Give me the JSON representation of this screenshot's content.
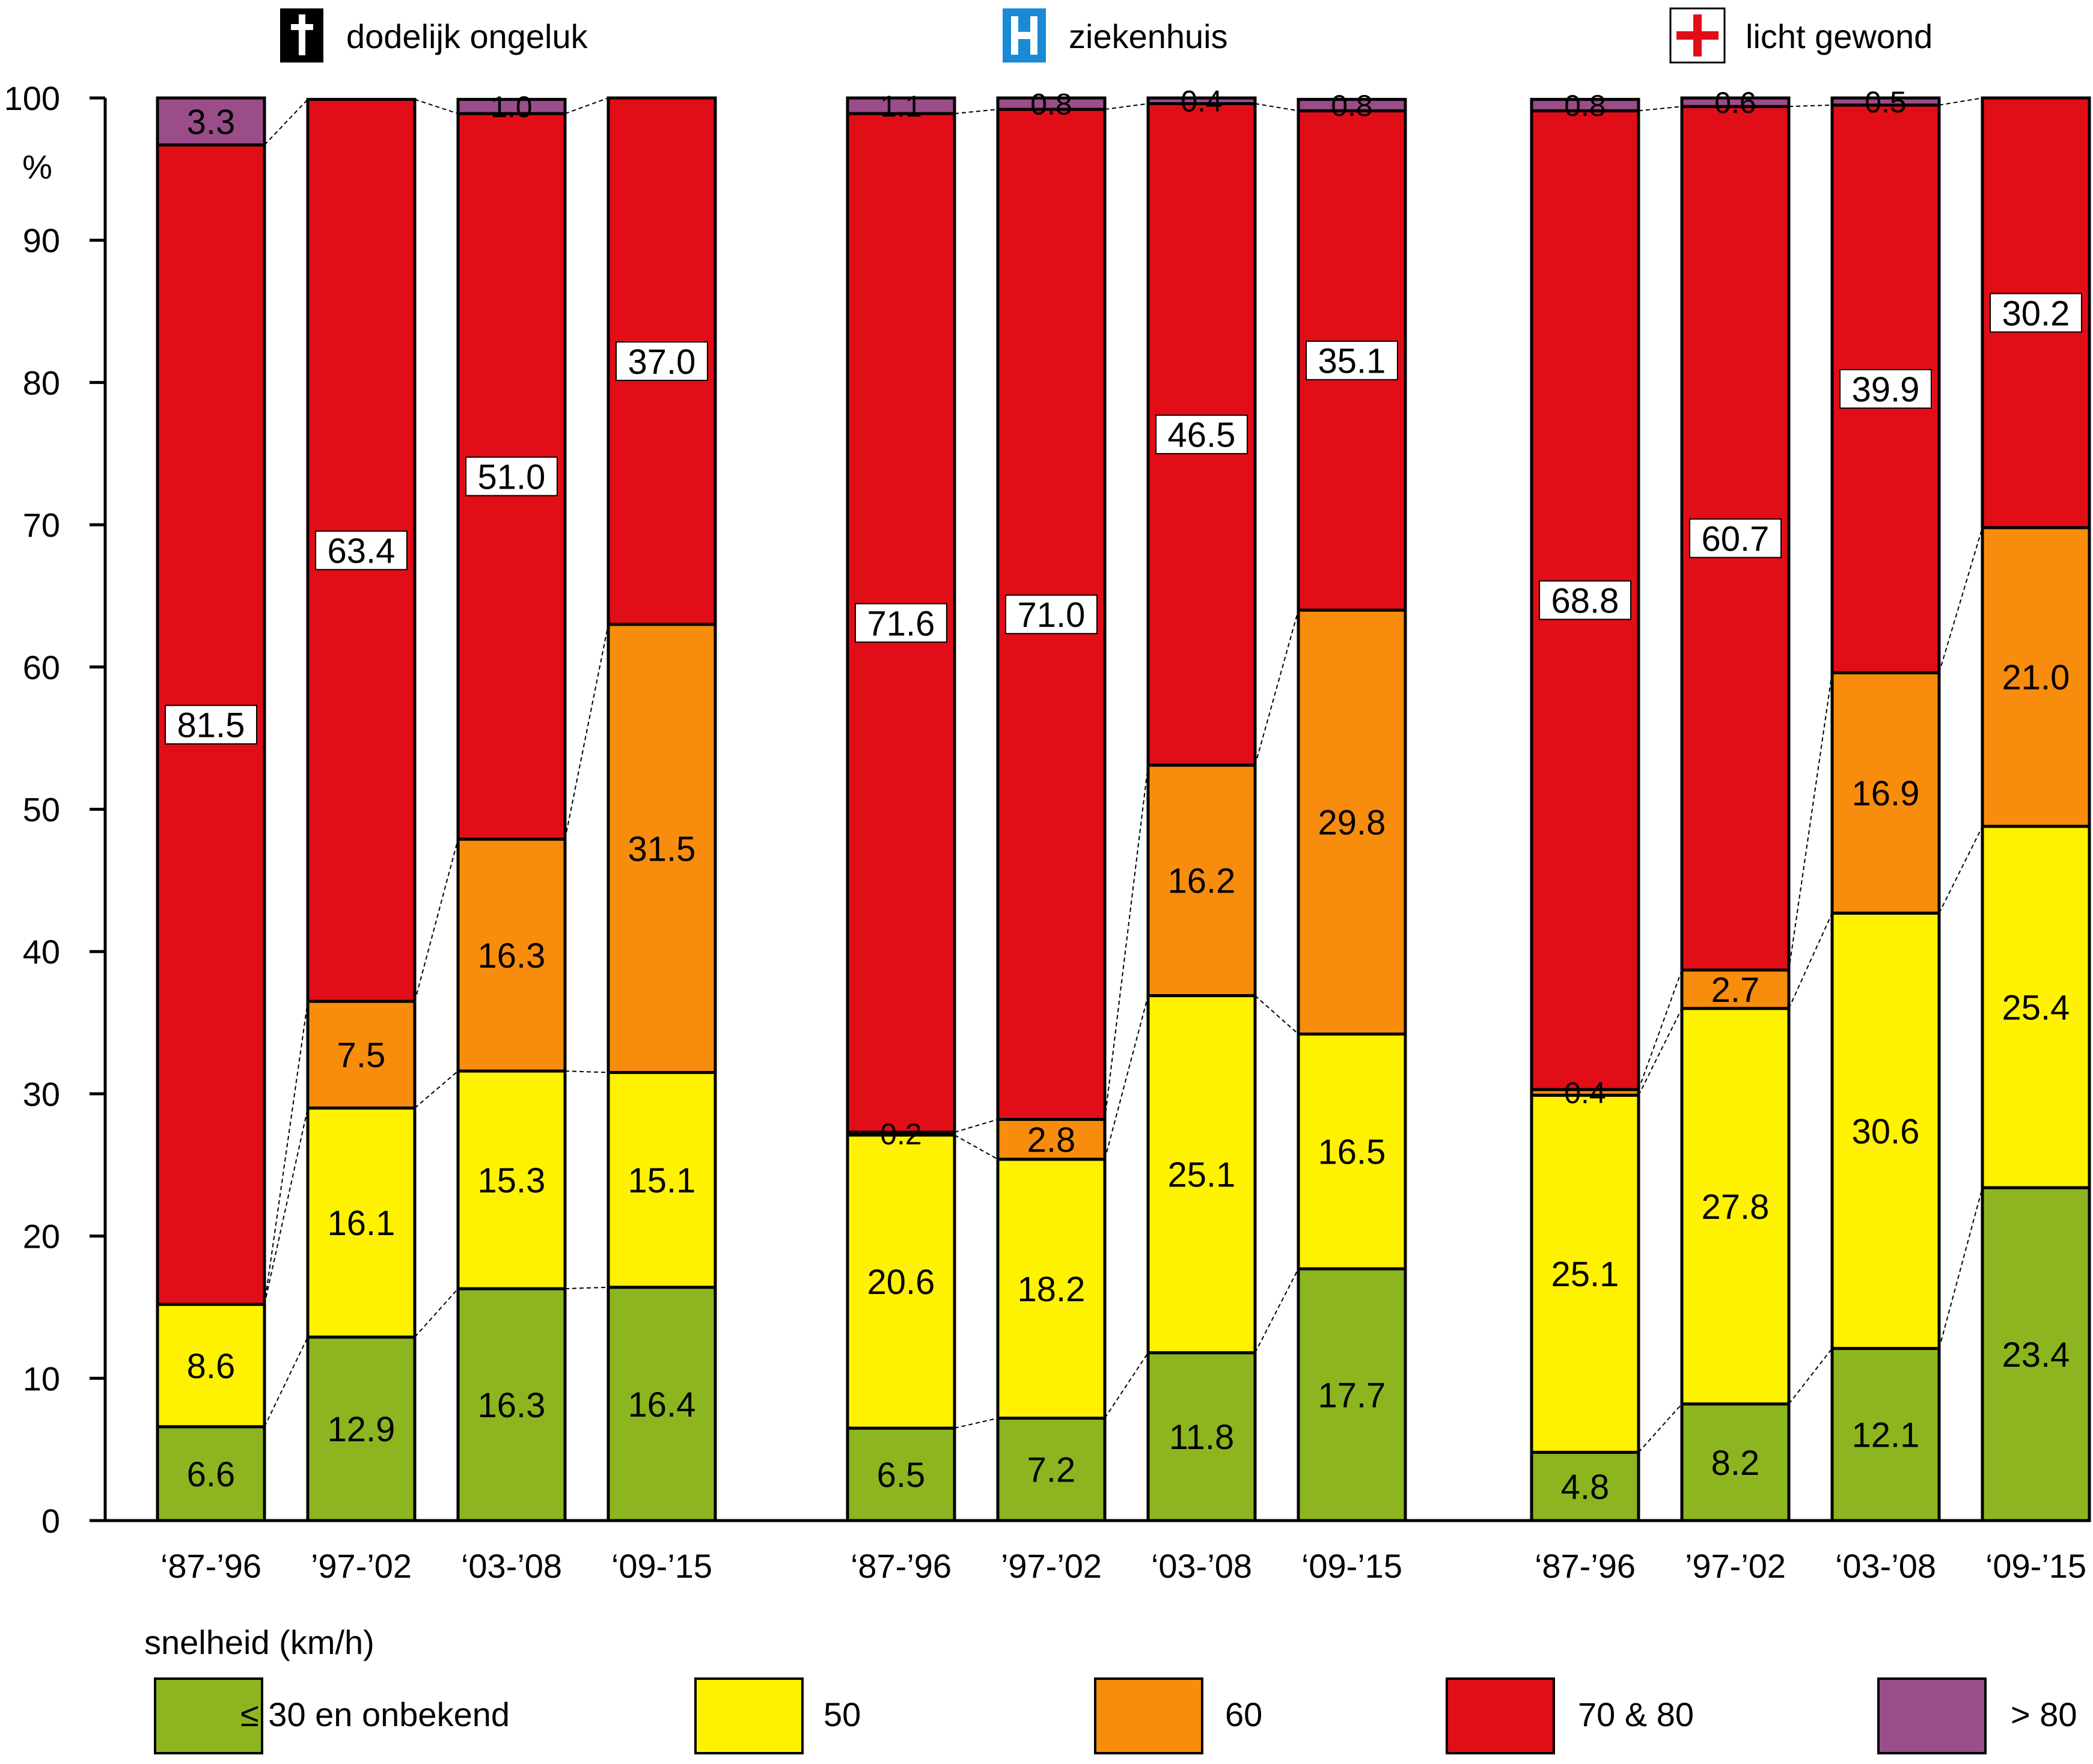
{
  "chart_data": {
    "type": "bar",
    "stacked": true,
    "ylim": [
      0,
      100
    ],
    "yticks": [
      0,
      10,
      20,
      30,
      40,
      50,
      60,
      70,
      80,
      90,
      100
    ],
    "ylabel": "%",
    "categories": [
      "‘87-’96",
      "’97-’02",
      "‘03-’08",
      "‘09-’15"
    ],
    "groups": [
      {
        "name": "dodelijk ongeluk",
        "icon": "cross-icon",
        "stacks": [
          [
            6.6,
            8.6,
            0,
            81.5,
            3.3
          ],
          [
            12.9,
            16.1,
            7.5,
            63.4,
            0
          ],
          [
            16.3,
            15.3,
            16.3,
            51.0,
            1.0
          ],
          [
            16.4,
            15.1,
            31.5,
            37.0,
            0
          ]
        ],
        "labels": [
          [
            "6.6",
            "8.6",
            "",
            "81.5",
            "3.3"
          ],
          [
            "12.9",
            "16.1",
            "7.5",
            "63.4",
            ""
          ],
          [
            "16.3",
            "15.3",
            "16.3",
            "51.0",
            "1.0"
          ],
          [
            "16.4",
            "15.1",
            "31.5",
            "37.0",
            ""
          ]
        ]
      },
      {
        "name": "ziekenhuis",
        "icon": "hospital-icon",
        "stacks": [
          [
            6.5,
            20.6,
            0.2,
            71.6,
            1.1
          ],
          [
            7.2,
            18.2,
            2.8,
            71.0,
            0.8
          ],
          [
            11.8,
            25.1,
            16.2,
            46.5,
            0.4
          ],
          [
            17.7,
            16.5,
            29.8,
            35.1,
            0.8
          ]
        ],
        "labels": [
          [
            "6.5",
            "20.6",
            "0.2",
            "71.6",
            "1.1"
          ],
          [
            "7.2",
            "18.2",
            "2.8",
            "71.0",
            "0.8"
          ],
          [
            "11.8",
            "25.1",
            "16.2",
            "46.5",
            "0.4"
          ],
          [
            "17.7",
            "16.5",
            "29.8",
            "35.1",
            "0.8"
          ]
        ]
      },
      {
        "name": "licht gewond",
        "icon": "red-cross-icon",
        "stacks": [
          [
            4.8,
            25.1,
            0.4,
            68.8,
            0.8
          ],
          [
            8.2,
            27.8,
            2.7,
            60.7,
            0.6
          ],
          [
            12.1,
            30.6,
            16.9,
            39.9,
            0.5
          ],
          [
            23.4,
            25.4,
            21.0,
            30.2,
            0
          ]
        ],
        "labels": [
          [
            "4.8",
            "25.1",
            "0.4",
            "68.8",
            "0.8"
          ],
          [
            "8.2",
            "27.8",
            "2.7",
            "60.7",
            "0.6"
          ],
          [
            "12.1",
            "30.6",
            "16.9",
            "39.9",
            "0.5"
          ],
          [
            "23.4",
            "25.4",
            "21.0",
            "30.2",
            ""
          ]
        ]
      }
    ],
    "series": [
      {
        "name": "≤ 30 en onbekend",
        "color": "#8db51f"
      },
      {
        "name": "50",
        "color": "#fff200"
      },
      {
        "name": "60",
        "color": "#f78c0d"
      },
      {
        "name": "70 & 80",
        "color": "#e20e17"
      },
      {
        "name": "> 80",
        "color": "#9b4d8a"
      }
    ],
    "legend": {
      "title": "snelheid (km/h)",
      "position": "bottom"
    },
    "grid": false
  }
}
